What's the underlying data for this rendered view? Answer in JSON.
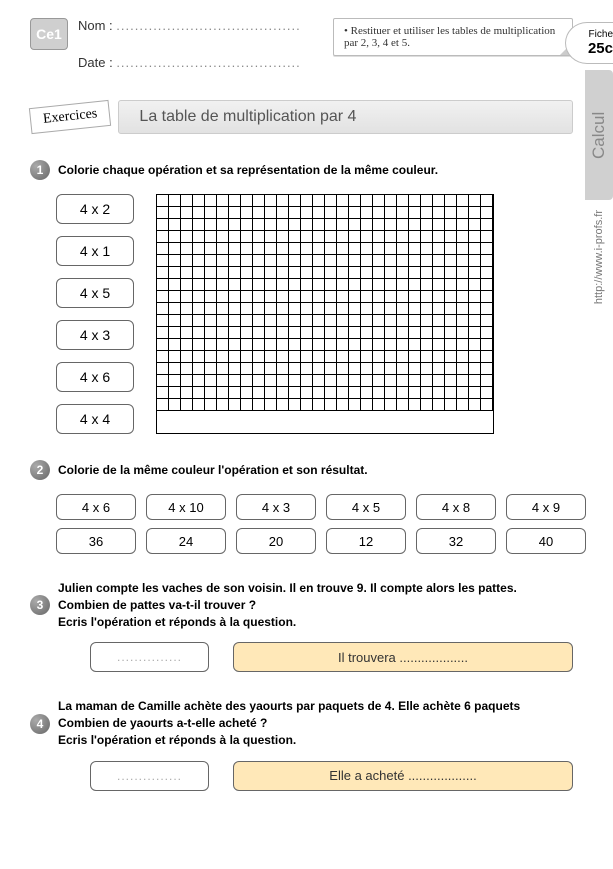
{
  "level": "Ce1",
  "nom_label": "Nom :",
  "date_label": "Date :",
  "dots": "........................................",
  "objective": "• Restituer et utiliser les tables de multiplication par 2, 3, 4 et 5.",
  "fiche_label": "Fiche",
  "fiche_code": "25c",
  "side_label": "Calcul",
  "site_url": "http://www.i-profs.fr",
  "exercices_label": "Exercices",
  "title": "La table de multiplication par 4",
  "ex1": {
    "prompt": "Colorie chaque opération et sa représentation de la même couleur.",
    "ops": [
      "4 x 2",
      "4 x 1",
      "4 x 5",
      "4 x 3",
      "4 x 6",
      "4 x 4"
    ],
    "grid_cols": 28,
    "grid_rows": 18
  },
  "ex2": {
    "prompt": "Colorie de la même couleur l'opération et son résultat.",
    "row1": [
      "4 x 6",
      "4 x 10",
      "4 x 3",
      "4 x 5",
      "4 x 8",
      "4 x 9"
    ],
    "row2": [
      "36",
      "24",
      "20",
      "12",
      "32",
      "40"
    ]
  },
  "ex3": {
    "lines": [
      "Julien compte les vaches de son voisin. Il en trouve 9.  Il compte alors les pattes.",
      "Combien de pattes va-t-il trouver ?",
      "Ecris l'opération et réponds à la question."
    ],
    "blank": "...............",
    "answer": "Il trouvera ..................."
  },
  "ex4": {
    "lines": [
      "La maman de Camille achète des yaourts par paquets de 4. Elle achète 6 paquets",
      "Combien de yaourts a-t-elle acheté ?",
      "Ecris l'opération et réponds à la question."
    ],
    "blank": "...............",
    "answer": "Elle a acheté ..................."
  },
  "numbers": {
    "n1": "1",
    "n2": "2",
    "n3": "3",
    "n4": "4"
  }
}
